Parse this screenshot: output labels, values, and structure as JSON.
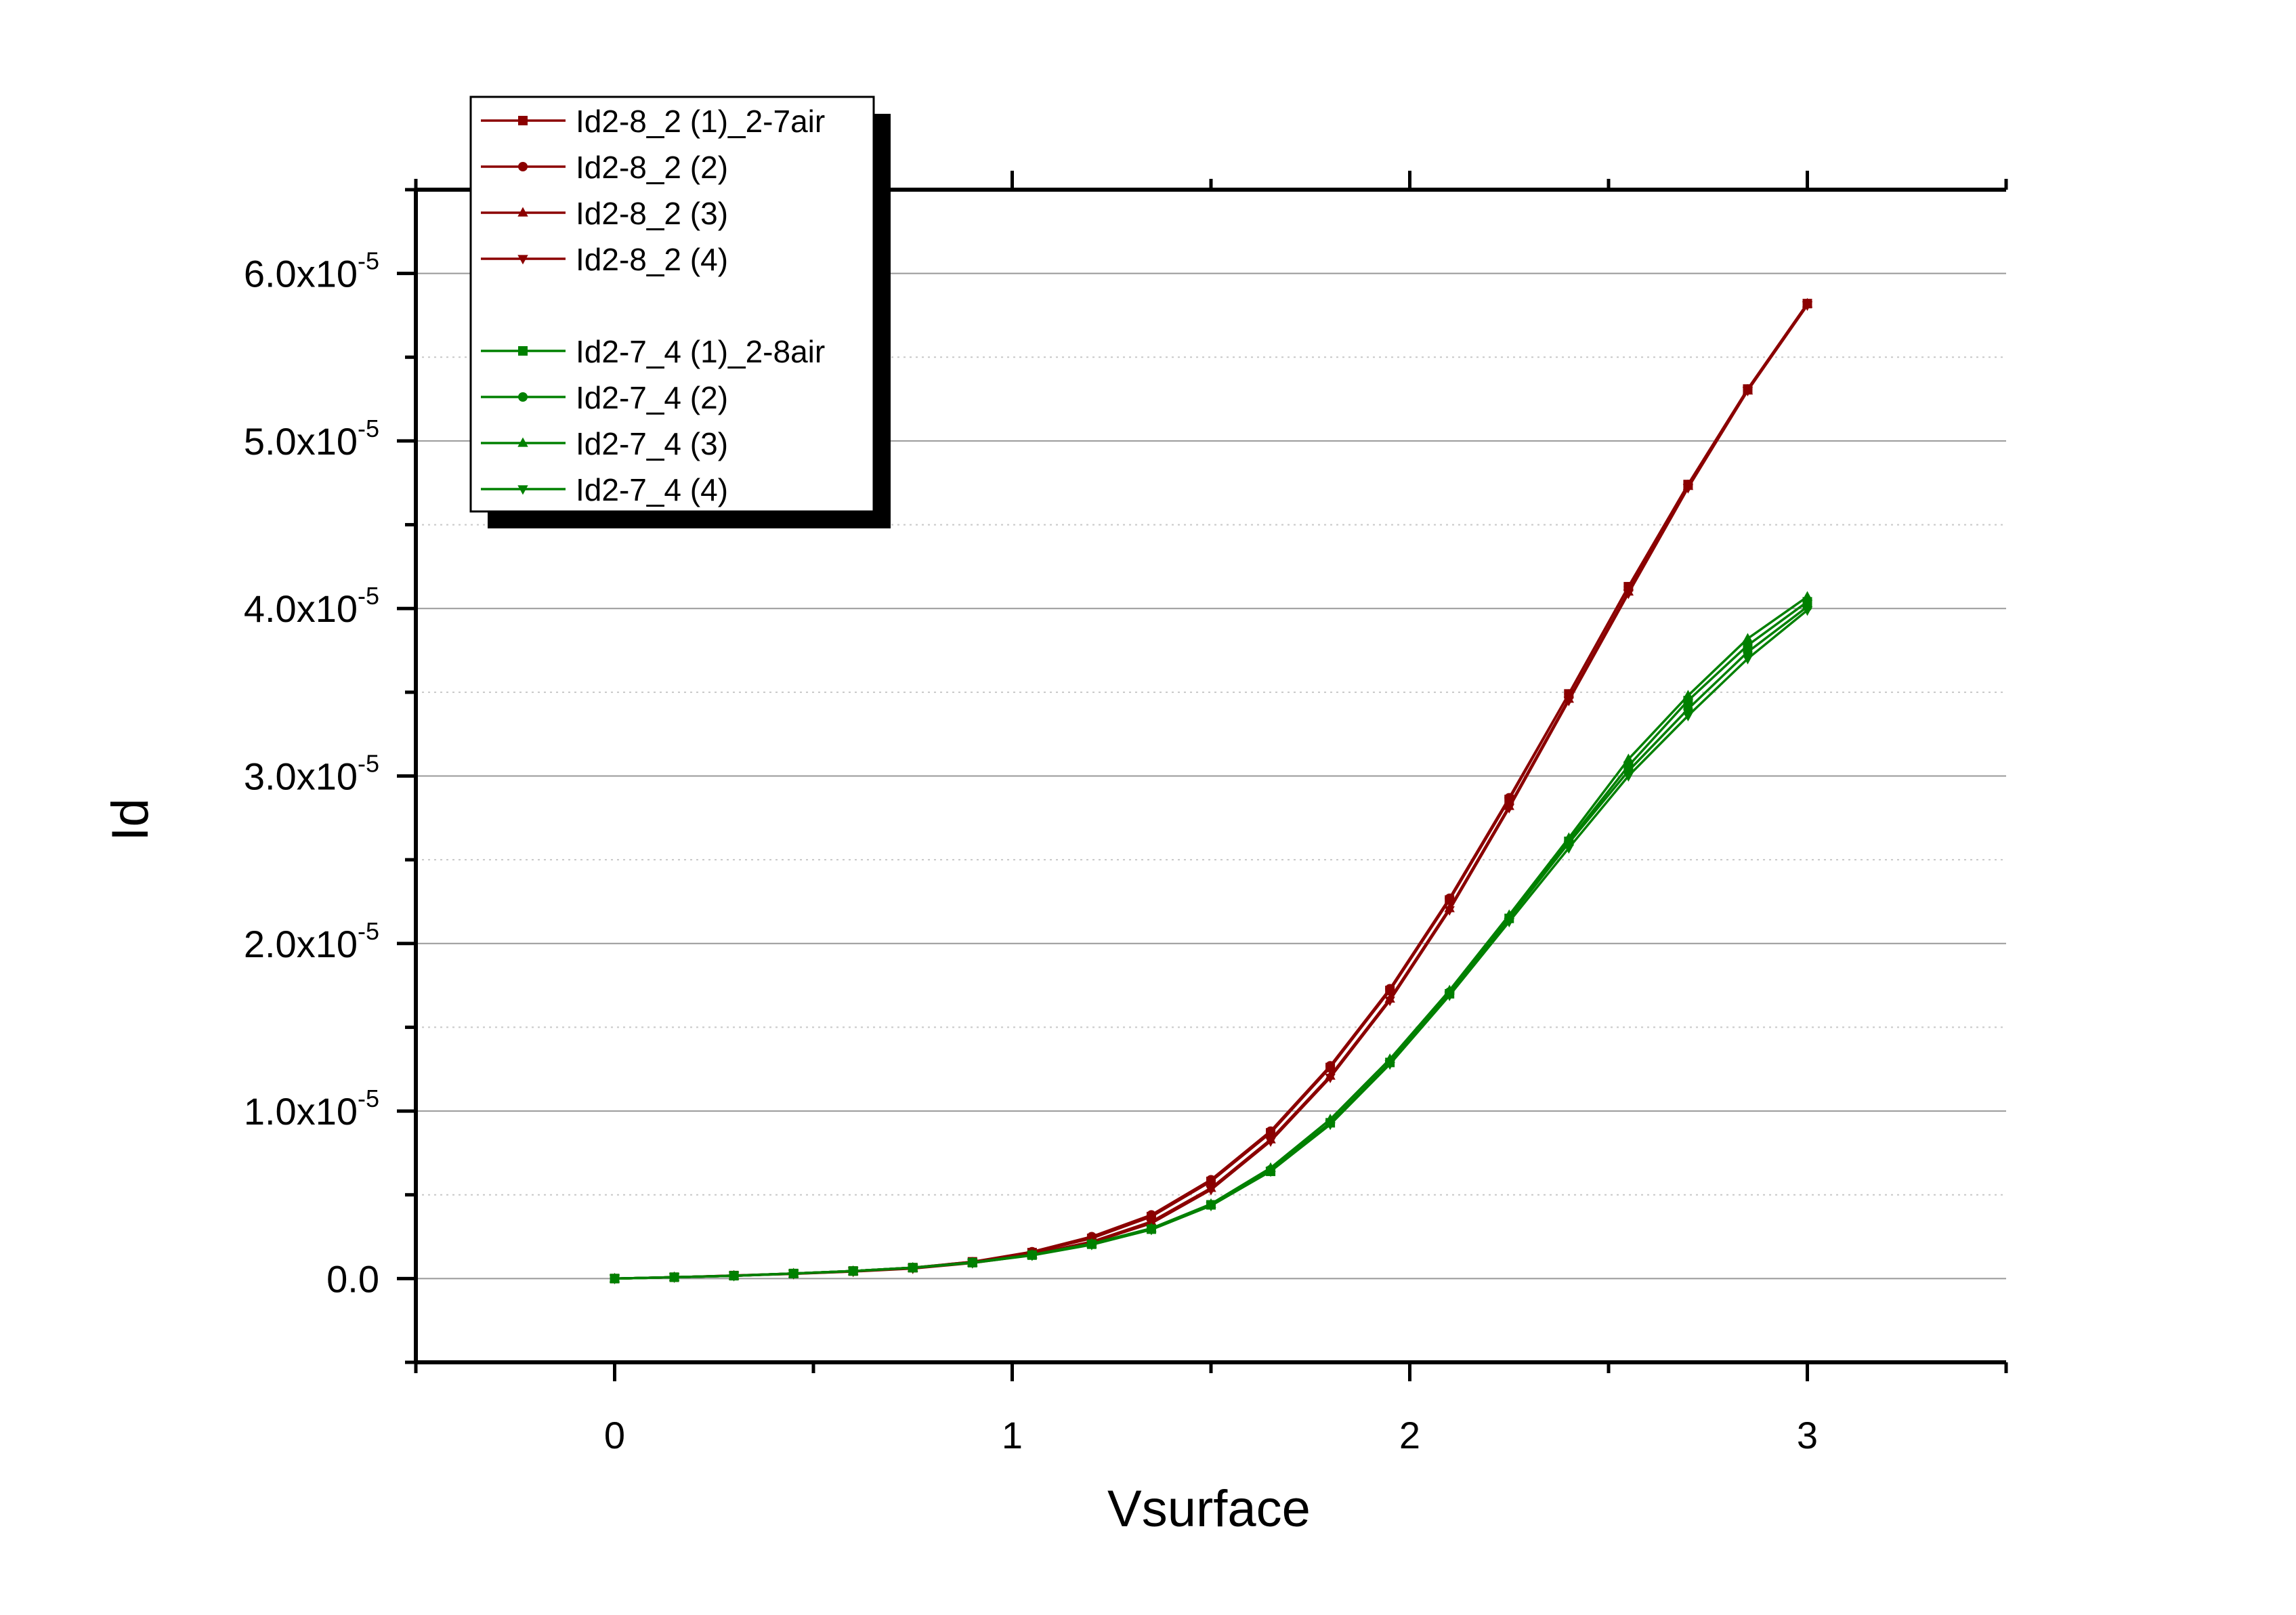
{
  "chart_data": {
    "type": "line",
    "title": "",
    "xlabel": "Vsurface",
    "ylabel": "Id",
    "xlim": [
      -0.5,
      3.5
    ],
    "ylim": [
      -5e-06,
      6.5e-05
    ],
    "x_ticks": [
      {
        "value": 0,
        "label": "0"
      },
      {
        "value": 1,
        "label": "1"
      },
      {
        "value": 2,
        "label": "2"
      },
      {
        "value": 3,
        "label": "3"
      }
    ],
    "y_ticks": [
      {
        "value": 0,
        "mantissa": "0.0",
        "exponent": ""
      },
      {
        "value": 1e-05,
        "mantissa": "1.0x10",
        "exponent": "-5"
      },
      {
        "value": 2e-05,
        "mantissa": "2.0x10",
        "exponent": "-5"
      },
      {
        "value": 3e-05,
        "mantissa": "3.0x10",
        "exponent": "-5"
      },
      {
        "value": 4e-05,
        "mantissa": "4.0x10",
        "exponent": "-5"
      },
      {
        "value": 5e-05,
        "mantissa": "5.0x10",
        "exponent": "-5"
      },
      {
        "value": 6e-05,
        "mantissa": "6.0x10",
        "exponent": "-5"
      }
    ],
    "grid": "horizontal major and minor",
    "legend_position": "top-left",
    "x": [
      0,
      0.15,
      0.3,
      0.45,
      0.6,
      0.75,
      0.9,
      1.05,
      1.2,
      1.35,
      1.5,
      1.65,
      1.8,
      1.95,
      2.1,
      2.25,
      2.4,
      2.55,
      2.7,
      2.85,
      3.0
    ],
    "series": [
      {
        "name": "Id2-8_2 (1)_2-7air",
        "color": "#8b0000",
        "marker": "square",
        "values": [
          0,
          8e-08,
          1.8e-07,
          3e-07,
          4.5e-07,
          6.5e-07,
          1e-06,
          1.55e-06,
          2.4e-06,
          3.7e-06,
          5.8e-06,
          8.7e-06,
          1.26e-05,
          1.72e-05,
          2.26e-05,
          2.86e-05,
          3.49e-05,
          4.13e-05,
          4.74e-05,
          5.31e-05,
          5.82e-05
        ]
      },
      {
        "name": "Id2-8_2 (2)",
        "color": "#8b0000",
        "marker": "circle",
        "values": [
          0,
          8e-08,
          1.8e-07,
          3e-07,
          4.5e-07,
          6.5e-07,
          1e-06,
          1.6e-06,
          2.5e-06,
          3.8e-06,
          5.9e-06,
          8.8e-06,
          1.27e-05,
          1.73e-05,
          2.27e-05,
          2.87e-05,
          3.49e-05,
          4.13e-05,
          4.74e-05,
          5.31e-05,
          5.82e-05
        ]
      },
      {
        "name": "Id2-8_2 (3)",
        "color": "#8b0000",
        "marker": "triangle-up",
        "values": [
          0,
          8e-08,
          1.7e-07,
          2.9e-07,
          4.3e-07,
          6.2e-07,
          9.5e-07,
          1.45e-06,
          2.2e-06,
          3.4e-06,
          5.4e-06,
          8.3e-06,
          1.21e-05,
          1.67e-05,
          2.21e-05,
          2.82e-05,
          3.46e-05,
          4.1e-05,
          4.73e-05,
          5.3e-05,
          5.82e-05
        ]
      },
      {
        "name": "Id2-8_2 (4)",
        "color": "#8b0000",
        "marker": "triangle-down",
        "values": [
          0,
          8e-08,
          1.7e-07,
          2.8e-07,
          4.2e-07,
          6e-07,
          9.3e-07,
          1.4e-06,
          2.15e-06,
          3.3e-06,
          5.3e-06,
          8.2e-06,
          1.2e-05,
          1.66e-05,
          2.2e-05,
          2.81e-05,
          3.45e-05,
          4.09e-05,
          4.72e-05,
          5.3e-05,
          5.81e-05
        ]
      },
      {
        "name": "Id2-7_4 (1)_2-8air",
        "color": "#008000",
        "marker": "square",
        "values": [
          0,
          8e-08,
          1.7e-07,
          3e-07,
          4.5e-07,
          6.5e-07,
          9.5e-07,
          1.4e-06,
          2.05e-06,
          2.95e-06,
          4.4e-06,
          6.4e-06,
          9.3e-06,
          1.29e-05,
          1.7e-05,
          2.15e-05,
          2.61e-05,
          3.06e-05,
          3.45e-05,
          3.78e-05,
          4.04e-05
        ]
      },
      {
        "name": "Id2-7_4 (2)",
        "color": "#008000",
        "marker": "circle",
        "values": [
          0,
          8e-08,
          1.7e-07,
          3e-07,
          4.5e-07,
          6.5e-07,
          9.5e-07,
          1.4e-06,
          2.05e-06,
          2.95e-06,
          4.4e-06,
          6.5e-06,
          9.3e-06,
          1.29e-05,
          1.71e-05,
          2.15e-05,
          2.6e-05,
          3.03e-05,
          3.4e-05,
          3.74e-05,
          4.01e-05
        ]
      },
      {
        "name": "Id2-7_4 (3)",
        "color": "#008000",
        "marker": "triangle-up",
        "values": [
          0,
          8e-08,
          1.7e-07,
          3e-07,
          4.5e-07,
          6.5e-07,
          9.6e-07,
          1.42e-06,
          2.08e-06,
          3e-06,
          4.45e-06,
          6.6e-06,
          9.5e-06,
          1.31e-05,
          1.72e-05,
          2.17e-05,
          2.63e-05,
          3.1e-05,
          3.48e-05,
          3.82e-05,
          4.07e-05
        ]
      },
      {
        "name": "Id2-7_4 (4)",
        "color": "#008000",
        "marker": "triangle-down",
        "values": [
          0,
          8e-08,
          1.7e-07,
          3e-07,
          4.5e-07,
          6.4e-07,
          9.4e-07,
          1.38e-06,
          2.02e-06,
          2.92e-06,
          4.35e-06,
          6.4e-06,
          9.2e-06,
          1.28e-05,
          1.69e-05,
          2.13e-05,
          2.57e-05,
          3e-05,
          3.36e-05,
          3.7e-05,
          3.99e-05
        ]
      }
    ]
  }
}
